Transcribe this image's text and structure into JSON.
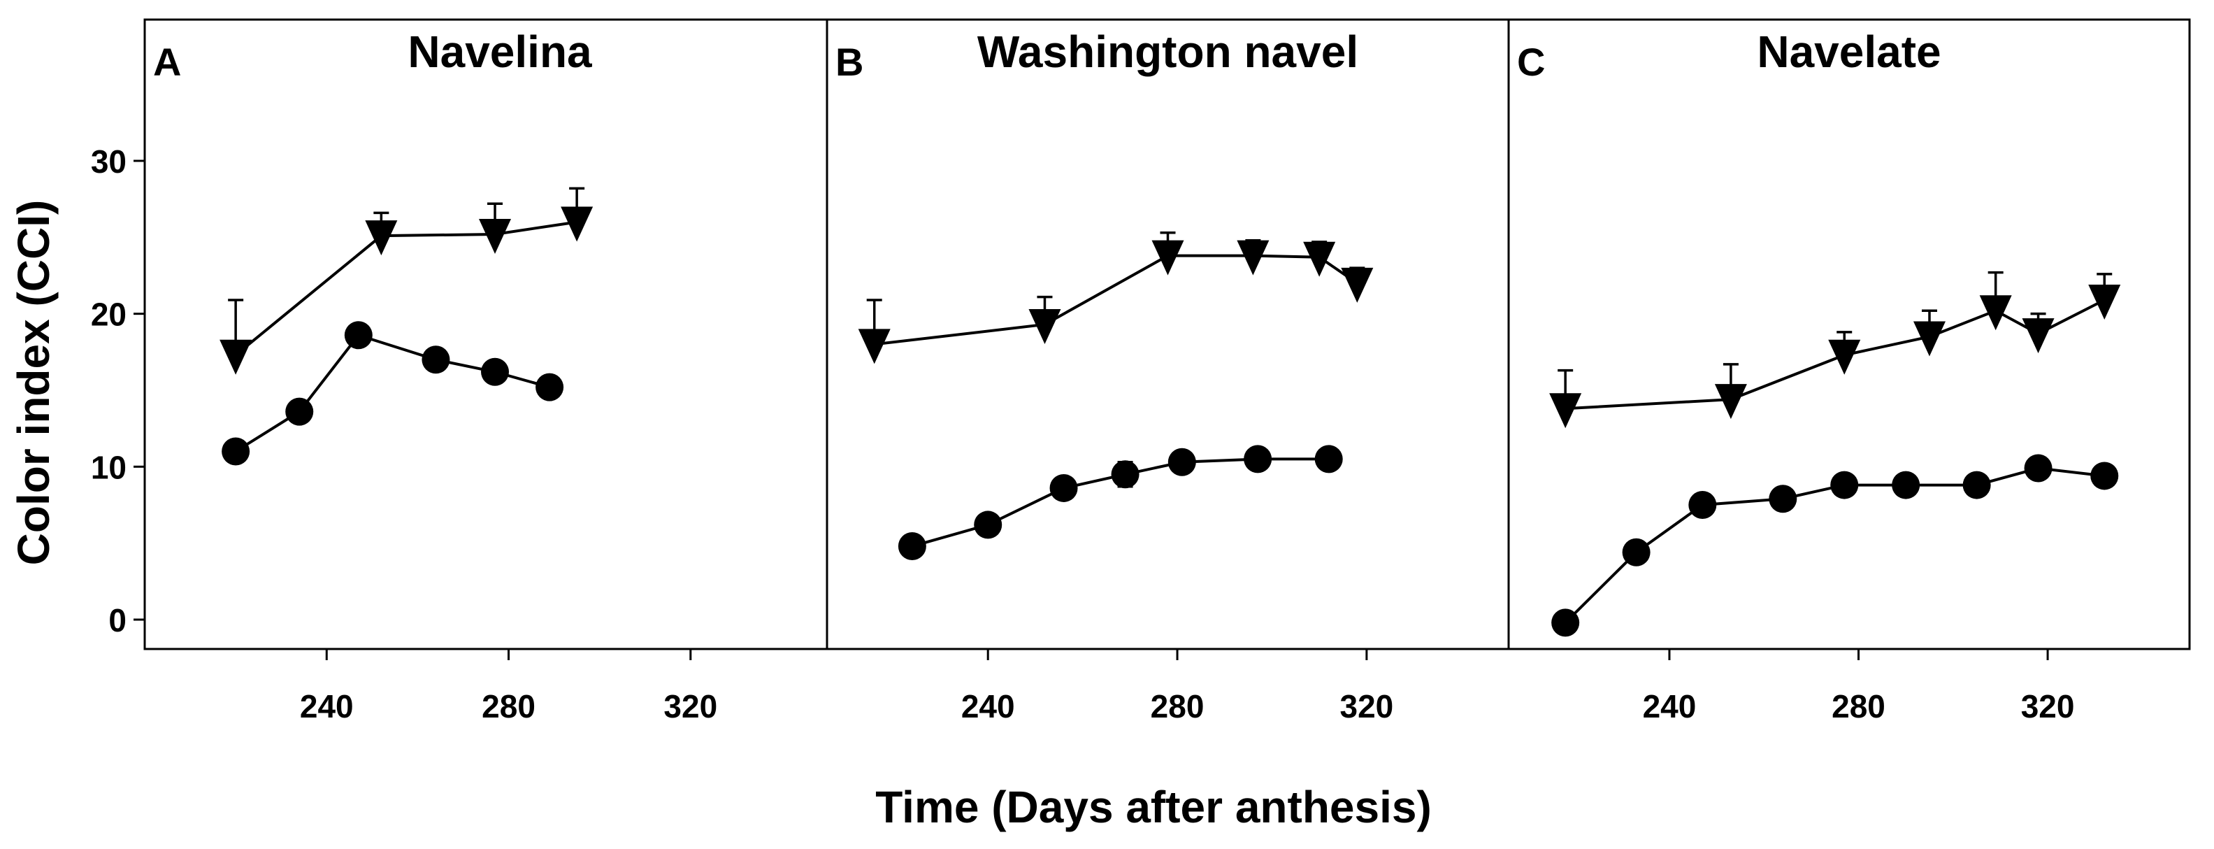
{
  "figure": {
    "ylabel": "Color index (CCI)",
    "xlabel": "Time (Days after anthesis)"
  },
  "chart_data": [
    {
      "type": "line",
      "panel_letter": "A",
      "title": "Navelina",
      "xlabel": "Time (Days after anthesis)",
      "ylabel": "Color index (CCI)",
      "xlim": [
        200,
        350
      ],
      "ylim": [
        -2,
        38
      ],
      "xticks": [
        240,
        280,
        320
      ],
      "yticks": [
        0,
        10,
        20,
        30
      ],
      "series": [
        {
          "name": "triangle",
          "marker": "triangle-down",
          "x": [
            220,
            252,
            277,
            295
          ],
          "y": [
            17.3,
            25.1,
            25.2,
            26.0
          ],
          "err": [
            3.6,
            1.5,
            2.0,
            2.2
          ]
        },
        {
          "name": "circle",
          "marker": "circle",
          "x": [
            220,
            234,
            247,
            264,
            277,
            289
          ],
          "y": [
            11.0,
            13.6,
            18.6,
            17.0,
            16.2,
            15.2
          ],
          "err": [
            0.6,
            0.6,
            0.5,
            0.5,
            0.5,
            0.4
          ]
        }
      ]
    },
    {
      "type": "line",
      "panel_letter": "B",
      "title": "Washington navel",
      "xlabel": "Time (Days after anthesis)",
      "ylabel": "Color index (CCI)",
      "xlim": [
        206,
        350
      ],
      "ylim": [
        -2,
        38
      ],
      "xticks": [
        240,
        280,
        320
      ],
      "yticks": [
        0,
        10,
        20,
        30
      ],
      "series": [
        {
          "name": "triangle",
          "marker": "triangle-down",
          "x": [
            216,
            252,
            278,
            296,
            310,
            318
          ],
          "y": [
            18.0,
            19.3,
            23.8,
            23.8,
            23.7,
            22.0
          ],
          "err": [
            2.9,
            1.8,
            1.5,
            1.0,
            1.0,
            1.0
          ]
        },
        {
          "name": "circle",
          "marker": "circle",
          "x": [
            224,
            240,
            256,
            269,
            281,
            297,
            312
          ],
          "y": [
            4.8,
            6.2,
            8.6,
            9.5,
            10.3,
            10.5,
            10.5
          ],
          "err": [
            0.4,
            0.4,
            0.4,
            0.8,
            0.4,
            0.4,
            0.6
          ]
        }
      ]
    },
    {
      "type": "line",
      "panel_letter": "C",
      "title": "Navelate",
      "xlabel": "Time (Days after anthesis)",
      "ylabel": "Color index (CCI)",
      "xlim": [
        206,
        350
      ],
      "ylim": [
        -2,
        38
      ],
      "xticks": [
        240,
        280,
        320
      ],
      "yticks": [
        0,
        10,
        20,
        30
      ],
      "series": [
        {
          "name": "triangle",
          "marker": "triangle-down",
          "x": [
            218,
            253,
            277,
            295,
            309,
            318,
            332
          ],
          "y": [
            13.8,
            14.4,
            17.3,
            18.5,
            20.2,
            18.7,
            20.9
          ],
          "err": [
            2.5,
            2.3,
            1.5,
            1.7,
            2.5,
            1.3,
            1.7
          ]
        },
        {
          "name": "circle",
          "marker": "circle",
          "x": [
            218,
            233,
            247,
            264,
            277,
            290,
            305,
            318,
            332
          ],
          "y": [
            -0.2,
            4.4,
            7.5,
            7.9,
            8.8,
            8.8,
            8.8,
            9.9,
            9.4
          ],
          "err": [
            0.6,
            0.6,
            0.5,
            0.4,
            0.4,
            0.3,
            0.3,
            0.4,
            0.4
          ]
        }
      ]
    }
  ]
}
